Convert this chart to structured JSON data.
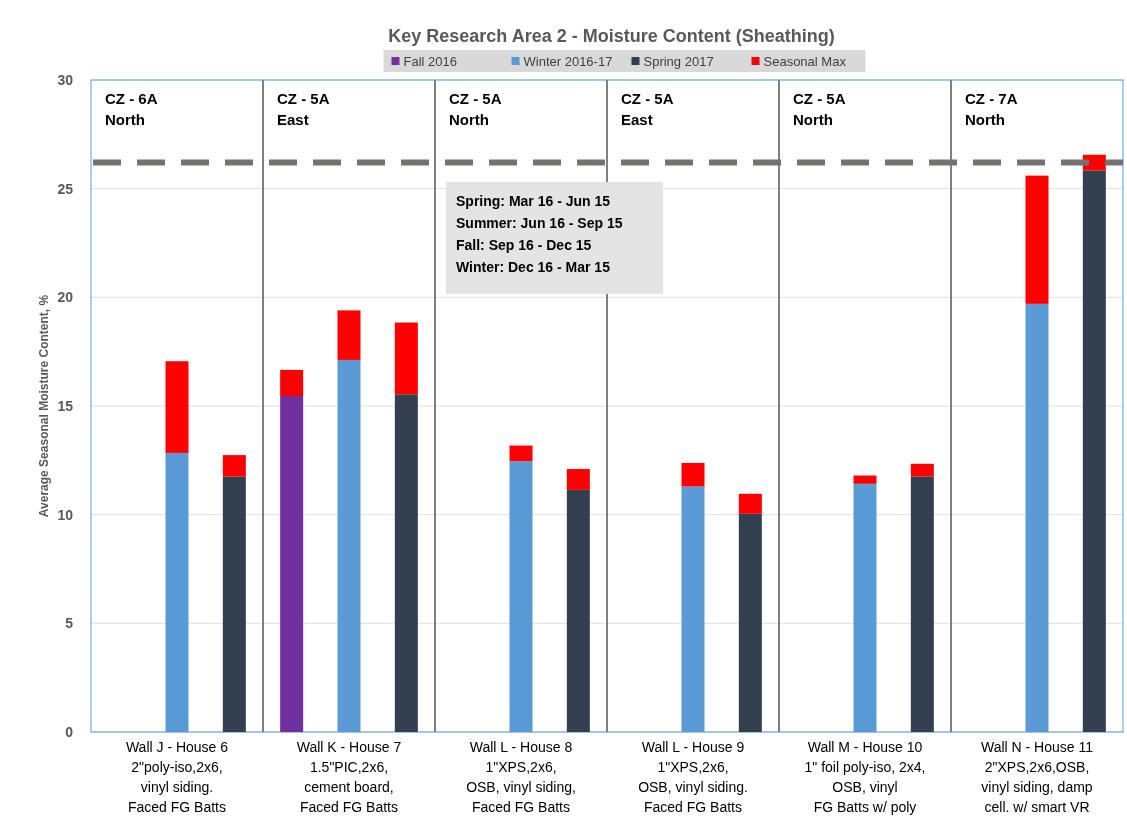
{
  "chart_data": {
    "type": "bar",
    "title": "Key Research Area 2 - Moisture Content (Sheathing)",
    "ylabel": "Average Seasonal Moisture Content, %",
    "categories": [
      null,
      "Wall J - House 6\n2\"poly-iso,2x6,\nvinyl siding.\nFaced FG Batts",
      null,
      null,
      "Wall K - House 7\n1.5\"PIC,2x6,\ncement board,\nFaced FG Batts",
      null,
      null,
      "Wall L - House 8\n1\"XPS,2x6,\nOSB, vinyl siding,\nFaced FG Batts",
      null,
      null,
      "Wall L - House 9\n1\"XPS,2x6,\nOSB, vinyl siding.\nFaced FG Batts",
      null,
      null,
      "Wall M - House 10\n1\" foil poly-iso, 2x4,\nOSB, vinyl\nFG Batts w/ poly",
      null,
      null,
      "Wall N - House 11\n2\"XPS,2x6,OSB,\nvinyl siding, damp\ncell. w/ smart VR",
      null
    ],
    "stacked": true,
    "series": [
      {
        "name": "Fall 2016",
        "color": "#7030a0",
        "values": [
          null,
          null,
          null,
          15.46,
          null,
          null,
          null,
          null,
          null,
          null,
          null,
          null,
          null,
          null,
          null,
          null,
          null,
          null
        ]
      },
      {
        "name": "Winter 2016-17",
        "color": "#5b9bd5",
        "values": [
          null,
          12.84,
          null,
          null,
          17.12,
          null,
          null,
          12.46,
          null,
          null,
          11.3,
          null,
          null,
          11.42,
          null,
          null,
          19.7,
          null
        ]
      },
      {
        "name": "Spring 2017",
        "color": "#323f4f",
        "values": [
          null,
          null,
          11.76,
          null,
          null,
          15.54,
          null,
          null,
          11.14,
          null,
          null,
          10.04,
          null,
          null,
          11.76,
          null,
          null,
          25.84
        ]
      },
      {
        "name": "Seasonal Max",
        "color": "#ff0000",
        "values": [
          null,
          4.22,
          0.98,
          1.2,
          2.28,
          3.3,
          null,
          0.72,
          0.96,
          null,
          1.08,
          0.92,
          null,
          0.38,
          0.58,
          null,
          5.9,
          0.72
        ]
      }
    ],
    "ylim": [
      0,
      30
    ],
    "yticks": [
      0,
      5,
      10,
      15,
      20,
      25,
      30
    ],
    "grid": "y",
    "legend": "top",
    "ref_lines": [
      {
        "axis": "y",
        "value": 26.2,
        "color": "#767171",
        "line_style": "dashed"
      }
    ],
    "annotations": [
      "CZ - 6A\nNorth",
      "CZ - 5A\nEast",
      "CZ - 5A\nNorth",
      "CZ - 5A\nEast",
      "CZ - 5A\nNorth",
      "CZ - 7A\nNorth",
      "Spring: Mar 16 - Jun 15\nSummer: Jun 16 - Sep 15\nFall: Sep 16 - Dec 15\nWinter: Dec 16 - Mar 15"
    ]
  }
}
